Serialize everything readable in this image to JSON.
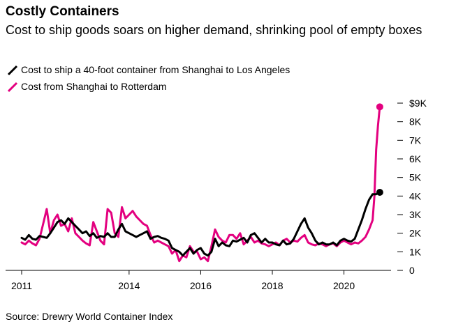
{
  "header": {
    "title": "Costly Containers",
    "subtitle": "Cost to ship goods soars on higher demand, shrinking pool of empty boxes"
  },
  "footer": {
    "source": "Source: Drewry World Container Index"
  },
  "colors": {
    "la": "#000000",
    "rotterdam": "#e3007f",
    "axis": "#000000"
  },
  "chart_data": {
    "type": "line",
    "title": "Costly Containers",
    "subtitle": "Cost to ship goods soars on higher demand, shrinking pool of empty boxes",
    "xlabel": "",
    "ylabel": "",
    "xlim": [
      2011,
      2021.1
    ],
    "ylim": [
      0,
      9000
    ],
    "x_ticks": [
      2011,
      2014,
      2016,
      2018,
      2020
    ],
    "x_tick_labels": [
      "2011",
      "2014",
      "2016",
      "2018",
      "2020"
    ],
    "y_ticks": [
      0,
      1000,
      2000,
      3000,
      4000,
      5000,
      6000,
      7000,
      8000,
      9000
    ],
    "y_tick_labels": [
      "0",
      "1K",
      "2K",
      "3K",
      "4K",
      "5K",
      "6K",
      "7K",
      "8K",
      "$9K"
    ],
    "grid": false,
    "legend_position": "top-left",
    "series": [
      {
        "name": "Cost to ship a 40-foot container from Shanghai to Los Angeles",
        "color": "#000000",
        "x": [
          2011.0,
          2011.1,
          2011.2,
          2011.3,
          2011.4,
          2011.5,
          2011.6,
          2011.7,
          2011.8,
          2011.9,
          2012.0,
          2012.1,
          2012.2,
          2012.3,
          2012.4,
          2012.5,
          2012.6,
          2012.7,
          2012.8,
          2012.9,
          2013.0,
          2013.1,
          2013.2,
          2013.3,
          2013.4,
          2013.5,
          2013.6,
          2013.7,
          2013.8,
          2013.9,
          2014.0,
          2014.1,
          2014.2,
          2014.3,
          2014.4,
          2014.5,
          2014.6,
          2014.7,
          2014.8,
          2014.9,
          2015.0,
          2015.1,
          2015.2,
          2015.3,
          2015.4,
          2015.5,
          2015.6,
          2015.7,
          2015.8,
          2015.9,
          2016.0,
          2016.1,
          2016.2,
          2016.3,
          2016.4,
          2016.5,
          2016.6,
          2016.7,
          2016.8,
          2016.9,
          2017.0,
          2017.1,
          2017.2,
          2017.3,
          2017.4,
          2017.5,
          2017.6,
          2017.7,
          2017.8,
          2017.9,
          2018.0,
          2018.1,
          2018.2,
          2018.3,
          2018.4,
          2018.5,
          2018.6,
          2018.7,
          2018.8,
          2018.9,
          2019.0,
          2019.1,
          2019.2,
          2019.3,
          2019.4,
          2019.5,
          2019.6,
          2019.7,
          2019.8,
          2019.9,
          2020.0,
          2020.1,
          2020.2,
          2020.3,
          2020.4,
          2020.5,
          2020.6,
          2020.7,
          2020.8,
          2020.9,
          2021.0
        ],
        "values": [
          1750,
          1650,
          1900,
          1700,
          1650,
          1850,
          1800,
          1750,
          2000,
          2300,
          2600,
          2700,
          2500,
          2800,
          2600,
          2400,
          2200,
          2000,
          2100,
          1850,
          2000,
          1750,
          1850,
          1800,
          2000,
          1800,
          1800,
          2200,
          2500,
          2100,
          2000,
          1900,
          1800,
          1900,
          2000,
          2100,
          1700,
          1800,
          1850,
          1750,
          1700,
          1600,
          1200,
          1100,
          1000,
          800,
          1000,
          1200,
          900,
          1100,
          1200,
          900,
          800,
          1000,
          1700,
          1300,
          1500,
          1350,
          1300,
          1600,
          1550,
          1650,
          1750,
          1500,
          1900,
          2000,
          1750,
          1500,
          1700,
          1500,
          1500,
          1400,
          1350,
          1600,
          1400,
          1450,
          1700,
          2100,
          2500,
          2800,
          2300,
          2000,
          1600,
          1400,
          1500,
          1400,
          1400,
          1500,
          1350,
          1600,
          1700,
          1600,
          1550,
          1700,
          2200,
          2700,
          3300,
          3800,
          4100,
          4100,
          4200
        ]
      },
      {
        "name": "Cost from Shanghai to Rotterdam",
        "color": "#e3007f",
        "x": [
          2011.0,
          2011.1,
          2011.2,
          2011.3,
          2011.4,
          2011.5,
          2011.6,
          2011.7,
          2011.8,
          2011.9,
          2012.0,
          2012.1,
          2012.2,
          2012.3,
          2012.4,
          2012.5,
          2012.6,
          2012.7,
          2012.8,
          2012.9,
          2013.0,
          2013.1,
          2013.2,
          2013.3,
          2013.4,
          2013.5,
          2013.6,
          2013.7,
          2013.8,
          2013.9,
          2014.0,
          2014.1,
          2014.2,
          2014.3,
          2014.4,
          2014.5,
          2014.6,
          2014.7,
          2014.8,
          2014.9,
          2015.0,
          2015.1,
          2015.2,
          2015.3,
          2015.4,
          2015.5,
          2015.6,
          2015.7,
          2015.8,
          2015.9,
          2016.0,
          2016.1,
          2016.2,
          2016.3,
          2016.4,
          2016.5,
          2016.6,
          2016.7,
          2016.8,
          2016.9,
          2017.0,
          2017.1,
          2017.2,
          2017.3,
          2017.4,
          2017.5,
          2017.6,
          2017.7,
          2017.8,
          2017.9,
          2018.0,
          2018.1,
          2018.2,
          2018.3,
          2018.4,
          2018.5,
          2018.6,
          2018.7,
          2018.8,
          2018.9,
          2019.0,
          2019.1,
          2019.2,
          2019.3,
          2019.4,
          2019.5,
          2019.6,
          2019.7,
          2019.8,
          2019.9,
          2020.0,
          2020.1,
          2020.2,
          2020.3,
          2020.4,
          2020.5,
          2020.6,
          2020.7,
          2020.8,
          2020.85,
          2020.9,
          2020.95,
          2021.0
        ],
        "values": [
          1500,
          1400,
          1600,
          1450,
          1350,
          1700,
          2500,
          3300,
          2000,
          2700,
          3000,
          2400,
          2500,
          2100,
          2800,
          2000,
          1800,
          1600,
          1450,
          1350,
          2600,
          2100,
          1600,
          1400,
          3300,
          3100,
          2000,
          1800,
          3400,
          2800,
          3000,
          3200,
          2900,
          2700,
          2500,
          2400,
          1900,
          1500,
          1600,
          1500,
          1400,
          1300,
          900,
          1100,
          500,
          800,
          700,
          1300,
          1000,
          1000,
          600,
          700,
          500,
          1300,
          2200,
          1800,
          1600,
          1500,
          1900,
          1900,
          1700,
          2000,
          1400,
          1600,
          1800,
          1500,
          1600,
          1450,
          1400,
          1300,
          1400,
          1500,
          1350,
          1600,
          1700,
          1500,
          1600,
          1550,
          1750,
          1900,
          1500,
          1400,
          1350,
          1450,
          1400,
          1300,
          1400,
          1450,
          1300,
          1500,
          1600,
          1500,
          1400,
          1500,
          1450,
          1600,
          1800,
          2200,
          2700,
          4000,
          6500,
          7800,
          8800
        ]
      }
    ]
  }
}
